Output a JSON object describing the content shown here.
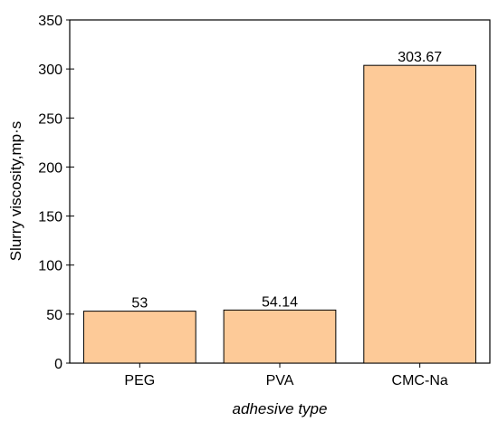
{
  "chart_data": {
    "type": "bar",
    "categories": [
      "PEG",
      "PVA",
      "CMC-Na"
    ],
    "values": [
      53,
      54.14,
      303.67
    ],
    "value_labels": [
      "53",
      "54.14",
      "303.67"
    ],
    "title": "",
    "xlabel": "adhesive type",
    "ylabel": "Slurry viscosity,mp·s",
    "ylim": [
      0,
      350
    ],
    "yticks": [
      0,
      50,
      100,
      150,
      200,
      250,
      300,
      350
    ],
    "grid": false,
    "legend": "none",
    "bar_color": "#FDCA98",
    "bar_edge_color": "#000000"
  }
}
